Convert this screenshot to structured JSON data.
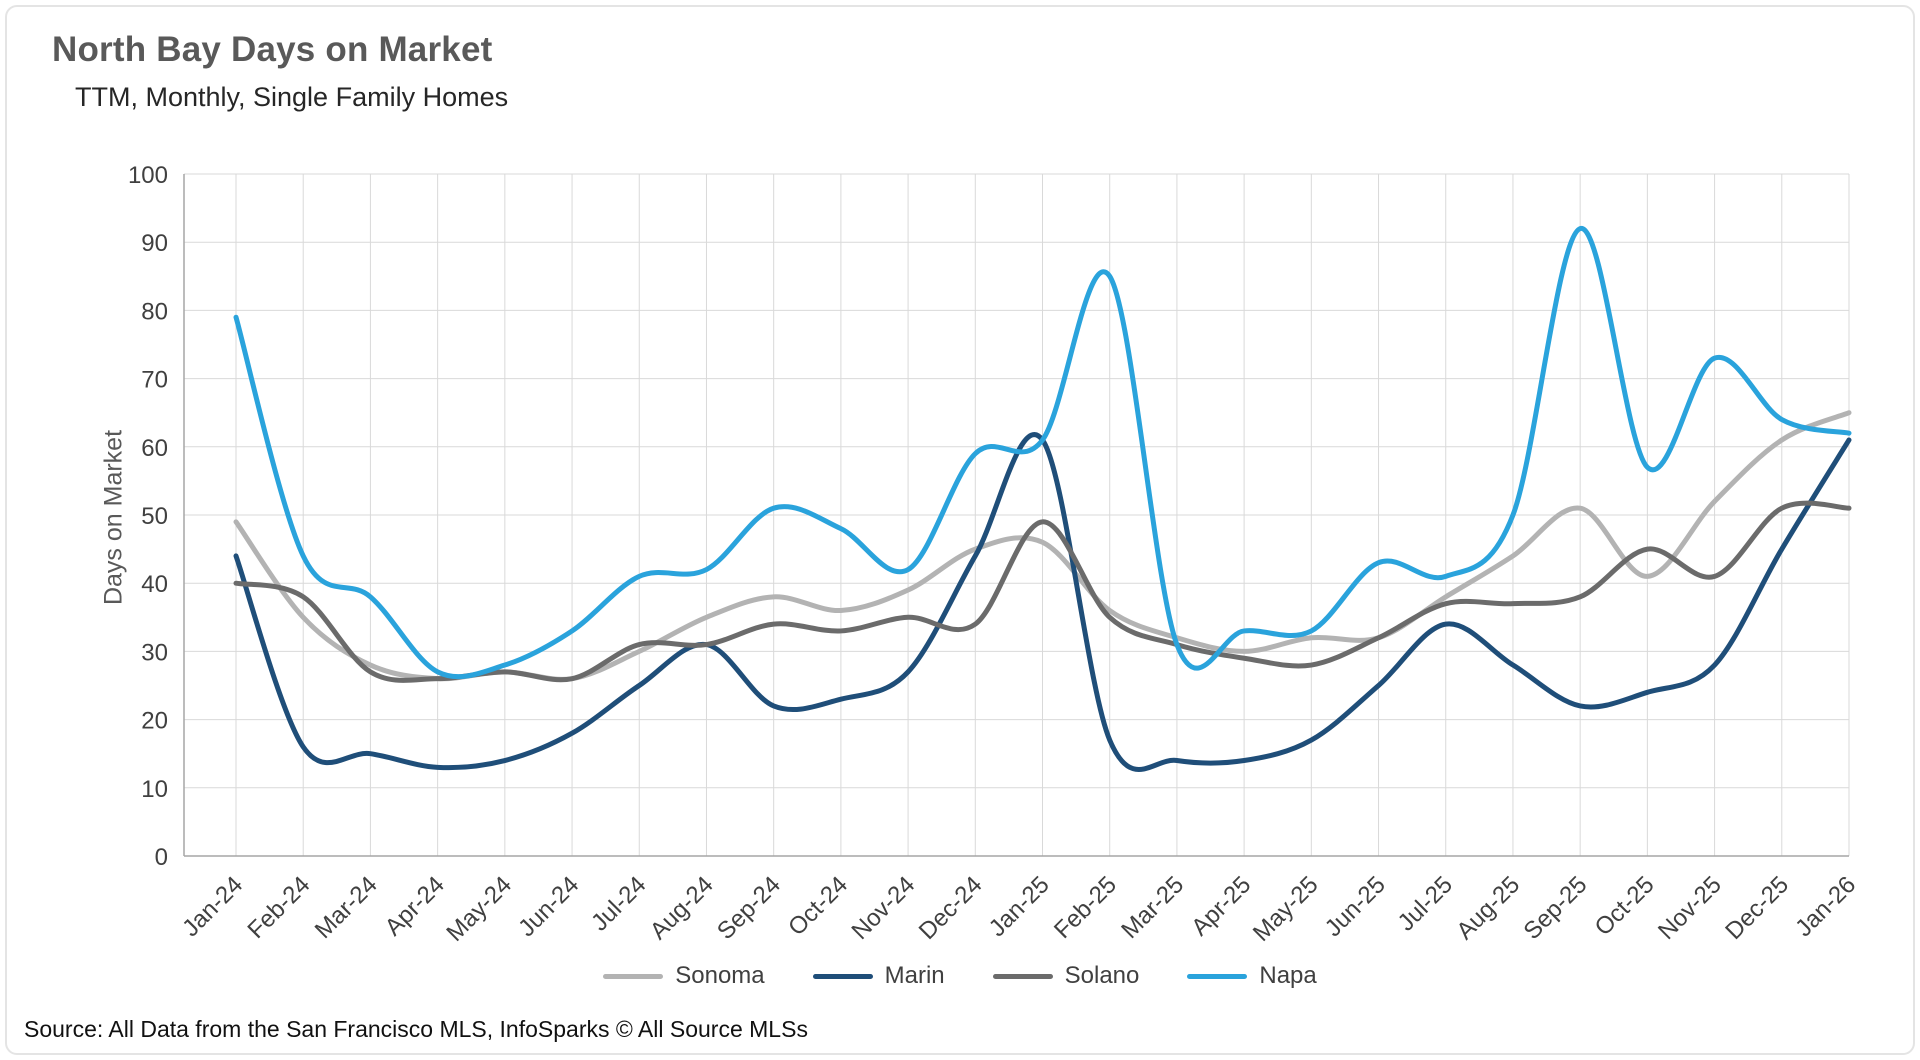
{
  "header": {
    "title": "North Bay Days on Market",
    "subtitle": "TTM, Monthly, Single Family Homes"
  },
  "footer": {
    "source": "Source: All Data from the San Francisco MLS, InfoSparks © All Source MLSs"
  },
  "chart_data": {
    "type": "line",
    "title": "North Bay Days on Market",
    "subtitle": "TTM, Monthly, Single Family Homes",
    "xlabel": "",
    "ylabel": "Days on Market",
    "ylim": [
      0,
      100
    ],
    "ytick_step": 10,
    "grid": true,
    "legend_position": "bottom",
    "smooth": true,
    "categories": [
      "Jan-24",
      "Feb-24",
      "Mar-24",
      "Apr-24",
      "May-24",
      "Jun-24",
      "Jul-24",
      "Aug-24",
      "Sep-24",
      "Oct-24",
      "Nov-24",
      "Dec-24",
      "Jan-25",
      "Feb-25",
      "Mar-25",
      "Apr-25",
      "May-25",
      "Jun-25",
      "Jul-25",
      "Aug-25",
      "Sep-25",
      "Oct-25",
      "Nov-25",
      "Dec-25",
      "Jan-26"
    ],
    "series": [
      {
        "name": "Sonoma",
        "color": "#b3b3b3",
        "values": [
          49,
          35,
          28,
          26,
          27,
          26,
          30,
          35,
          38,
          36,
          39,
          45,
          46,
          36,
          32,
          30,
          32,
          32,
          38,
          44,
          51,
          41,
          52,
          61,
          65
        ]
      },
      {
        "name": "Marin",
        "color": "#1f4e79",
        "values": [
          44,
          16,
          15,
          13,
          14,
          18,
          25,
          31,
          22,
          23,
          27,
          44,
          61,
          17,
          14,
          14,
          17,
          25,
          34,
          28,
          22,
          24,
          28,
          45,
          61
        ]
      },
      {
        "name": "Solano",
        "color": "#6b6b6b",
        "values": [
          40,
          38,
          27,
          26,
          27,
          26,
          31,
          31,
          34,
          33,
          35,
          34,
          49,
          35,
          31,
          29,
          28,
          32,
          37,
          37,
          38,
          45,
          41,
          51,
          51
        ]
      },
      {
        "name": "Napa",
        "color": "#2aa3dc",
        "values": [
          79,
          44,
          38,
          27,
          28,
          33,
          41,
          42,
          51,
          48,
          42,
          59,
          61,
          85,
          31,
          33,
          33,
          43,
          41,
          50,
          92,
          57,
          73,
          64,
          62
        ]
      }
    ],
    "style": {
      "grid_color": "#d9d9d9",
      "axis_color": "#a6a6a6",
      "tick_label_color": "#404040",
      "line_width": 5
    }
  }
}
